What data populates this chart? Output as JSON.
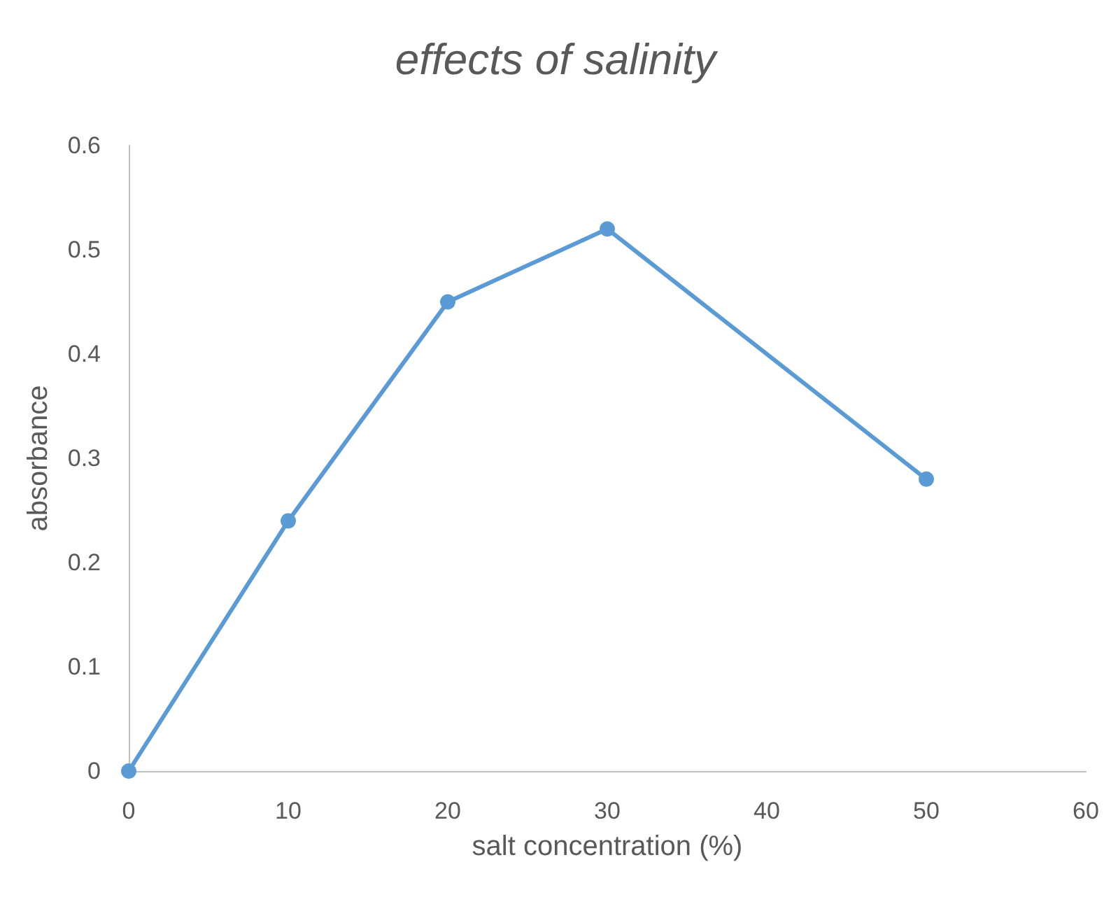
{
  "chart_data": {
    "type": "line",
    "title": "effects of salinity",
    "xlabel": "salt concentration (%)",
    "ylabel": "absorbance",
    "x": [
      0,
      10,
      20,
      30,
      50
    ],
    "series": [
      {
        "color": "#5b9bd5",
        "values": [
          0,
          0.24,
          0.45,
          0.52,
          0.28
        ]
      }
    ],
    "xlim": [
      0,
      60
    ],
    "xticks": [
      0,
      10,
      20,
      30,
      40,
      50,
      60
    ],
    "ylim": [
      0,
      0.6
    ],
    "yticks": [
      0,
      0.1,
      0.2,
      0.3,
      0.4,
      0.5,
      0.6
    ],
    "grid": false,
    "marker": "circle",
    "line_style": "solid"
  }
}
